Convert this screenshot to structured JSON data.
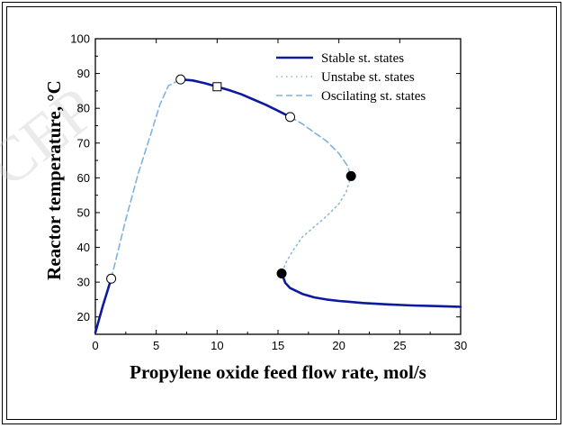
{
  "chart_data": {
    "type": "line",
    "title": "",
    "xlabel": "Propylene oxide feed flow rate, mol/s",
    "ylabel": "Reactor temperature, °C",
    "xlim": [
      0,
      30
    ],
    "ylim": [
      15,
      100
    ],
    "xticks": [
      0,
      5,
      10,
      15,
      20,
      25,
      30
    ],
    "yticks": [
      20,
      30,
      40,
      50,
      60,
      70,
      80,
      90,
      100
    ],
    "grid": false,
    "legend_position": "top-right",
    "series": [
      {
        "name": "Stable st. states",
        "style": "solid",
        "color": "#0d1a9c",
        "segments": [
          [
            [
              0,
              15.5
            ],
            [
              0.6,
              23
            ],
            [
              1.3,
              31
            ]
          ],
          [
            [
              7.0,
              88.3
            ],
            [
              8,
              88.0
            ],
            [
              9,
              87.2
            ],
            [
              10,
              86.2
            ],
            [
              11,
              85.2
            ],
            [
              12,
              84.0
            ],
            [
              13,
              82.5
            ],
            [
              14,
              81.0
            ],
            [
              15,
              79.3
            ],
            [
              16,
              77.5
            ]
          ],
          [
            [
              15.3,
              32.5
            ],
            [
              15.6,
              29.8
            ],
            [
              16,
              28.3
            ],
            [
              17,
              26.6
            ],
            [
              18,
              25.6
            ],
            [
              19,
              25.0
            ],
            [
              20,
              24.6
            ],
            [
              22,
              24.0
            ],
            [
              24,
              23.6
            ],
            [
              26,
              23.3
            ],
            [
              28,
              23.1
            ],
            [
              30,
              22.9
            ]
          ]
        ]
      },
      {
        "name": "Unstabe st. states",
        "style": "dotted",
        "color": "#8fb8d8",
        "segments": [
          [
            [
              21.0,
              60.5
            ],
            [
              20.6,
              56
            ],
            [
              20.0,
              52.5
            ],
            [
              19.0,
              49
            ],
            [
              18.0,
              46
            ],
            [
              17.0,
              43
            ],
            [
              16.3,
              39.5
            ],
            [
              15.7,
              36
            ],
            [
              15.3,
              32.5
            ]
          ]
        ]
      },
      {
        "name": "Oscilating st. states",
        "style": "dashed",
        "color": "#7fb3df",
        "segments": [
          [
            [
              1.3,
              31
            ],
            [
              2.5,
              48
            ],
            [
              3.5,
              61
            ],
            [
              4.5,
              72
            ],
            [
              5.3,
              81
            ],
            [
              6.0,
              86.5
            ],
            [
              7.0,
              88.3
            ]
          ],
          [
            [
              16.0,
              77.5
            ],
            [
              17,
              75.5
            ],
            [
              18,
              73.0
            ],
            [
              19,
              70.5
            ],
            [
              20,
              67.0
            ],
            [
              20.7,
              63.5
            ],
            [
              21.0,
              60.5
            ]
          ]
        ]
      }
    ],
    "markers": [
      {
        "shape": "circle-open",
        "x": 1.3,
        "y": 31
      },
      {
        "shape": "circle-open",
        "x": 7.0,
        "y": 88.3
      },
      {
        "shape": "square-open",
        "x": 10.0,
        "y": 86.2
      },
      {
        "shape": "circle-open",
        "x": 16.0,
        "y": 77.5
      },
      {
        "shape": "circle-filled",
        "x": 21.0,
        "y": 60.5
      },
      {
        "shape": "circle-filled",
        "x": 15.3,
        "y": 32.5
      }
    ]
  },
  "watermark": "CEP"
}
